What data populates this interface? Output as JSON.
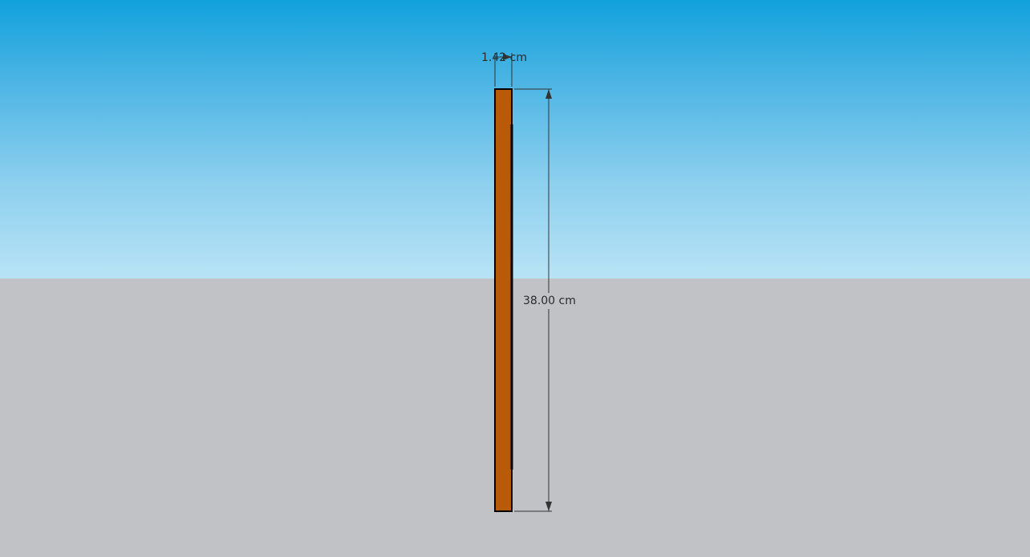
{
  "viewport": {
    "sky_color_top": "#11a1dc",
    "sky_color_horizon": "#b8e3f5",
    "ground_color": "#c1c2c6"
  },
  "model": {
    "board_face_color": "#b85a08",
    "edge_color": "#000000"
  },
  "dimensions": {
    "width_label": "1.42 cm",
    "height_label": "38.00 cm"
  }
}
